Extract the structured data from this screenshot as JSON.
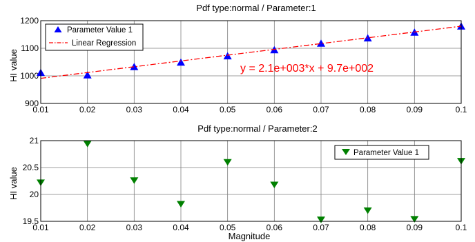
{
  "chart_data": [
    {
      "type": "scatter",
      "title": "Pdf type:normal / Parameter:1",
      "xlabel": "",
      "ylabel": "HI value",
      "xlim": [
        0.01,
        0.1
      ],
      "ylim": [
        900,
        1200
      ],
      "xticks": [
        "0.01",
        "0.02",
        "0.03",
        "0.04",
        "0.05",
        "0.06",
        "0.07",
        "0.08",
        "0.09",
        "0.1"
      ],
      "yticks": [
        "900",
        "1000",
        "1100",
        "1200"
      ],
      "grid": true,
      "legend_position": "top-left",
      "series": [
        {
          "name": "Parameter Value 1",
          "marker": "triangle-up",
          "color": "#0000ff",
          "x": [
            0.01,
            0.02,
            0.03,
            0.04,
            0.05,
            0.06,
            0.07,
            0.08,
            0.09,
            0.1
          ],
          "y": [
            1011,
            1002,
            1032,
            1048,
            1071,
            1093,
            1117,
            1136,
            1157,
            1179
          ]
        },
        {
          "name": "Linear Regression",
          "style": "dash-dot",
          "color": "#ff0000",
          "x": [
            0.01,
            0.1
          ],
          "y": [
            991,
            1180
          ]
        }
      ],
      "annotation": {
        "text": "y = 2.1e+003*x + 9.7e+002",
        "color": "#ff0000"
      }
    },
    {
      "type": "scatter",
      "title": "Pdf type:normal / Parameter:2",
      "xlabel": "Magnitude",
      "ylabel": "HI value",
      "xlim": [
        0.01,
        0.1
      ],
      "ylim": [
        19.5,
        21
      ],
      "xticks": [
        "0.01",
        "0.02",
        "0.03",
        "0.04",
        "0.05",
        "0.06",
        "0.07",
        "0.08",
        "0.09",
        "0.1"
      ],
      "yticks": [
        "19.5",
        "20",
        "20.5",
        "21"
      ],
      "grid": true,
      "legend_position": "top-right",
      "series": [
        {
          "name": "Parameter Value 1",
          "marker": "triangle-down",
          "color": "#008000",
          "x": [
            0.01,
            0.02,
            0.03,
            0.04,
            0.05,
            0.06,
            0.07,
            0.08,
            0.09,
            0.1
          ],
          "y": [
            20.22,
            20.94,
            20.26,
            19.82,
            20.6,
            20.18,
            19.53,
            19.7,
            19.54,
            20.62
          ]
        }
      ]
    }
  ]
}
